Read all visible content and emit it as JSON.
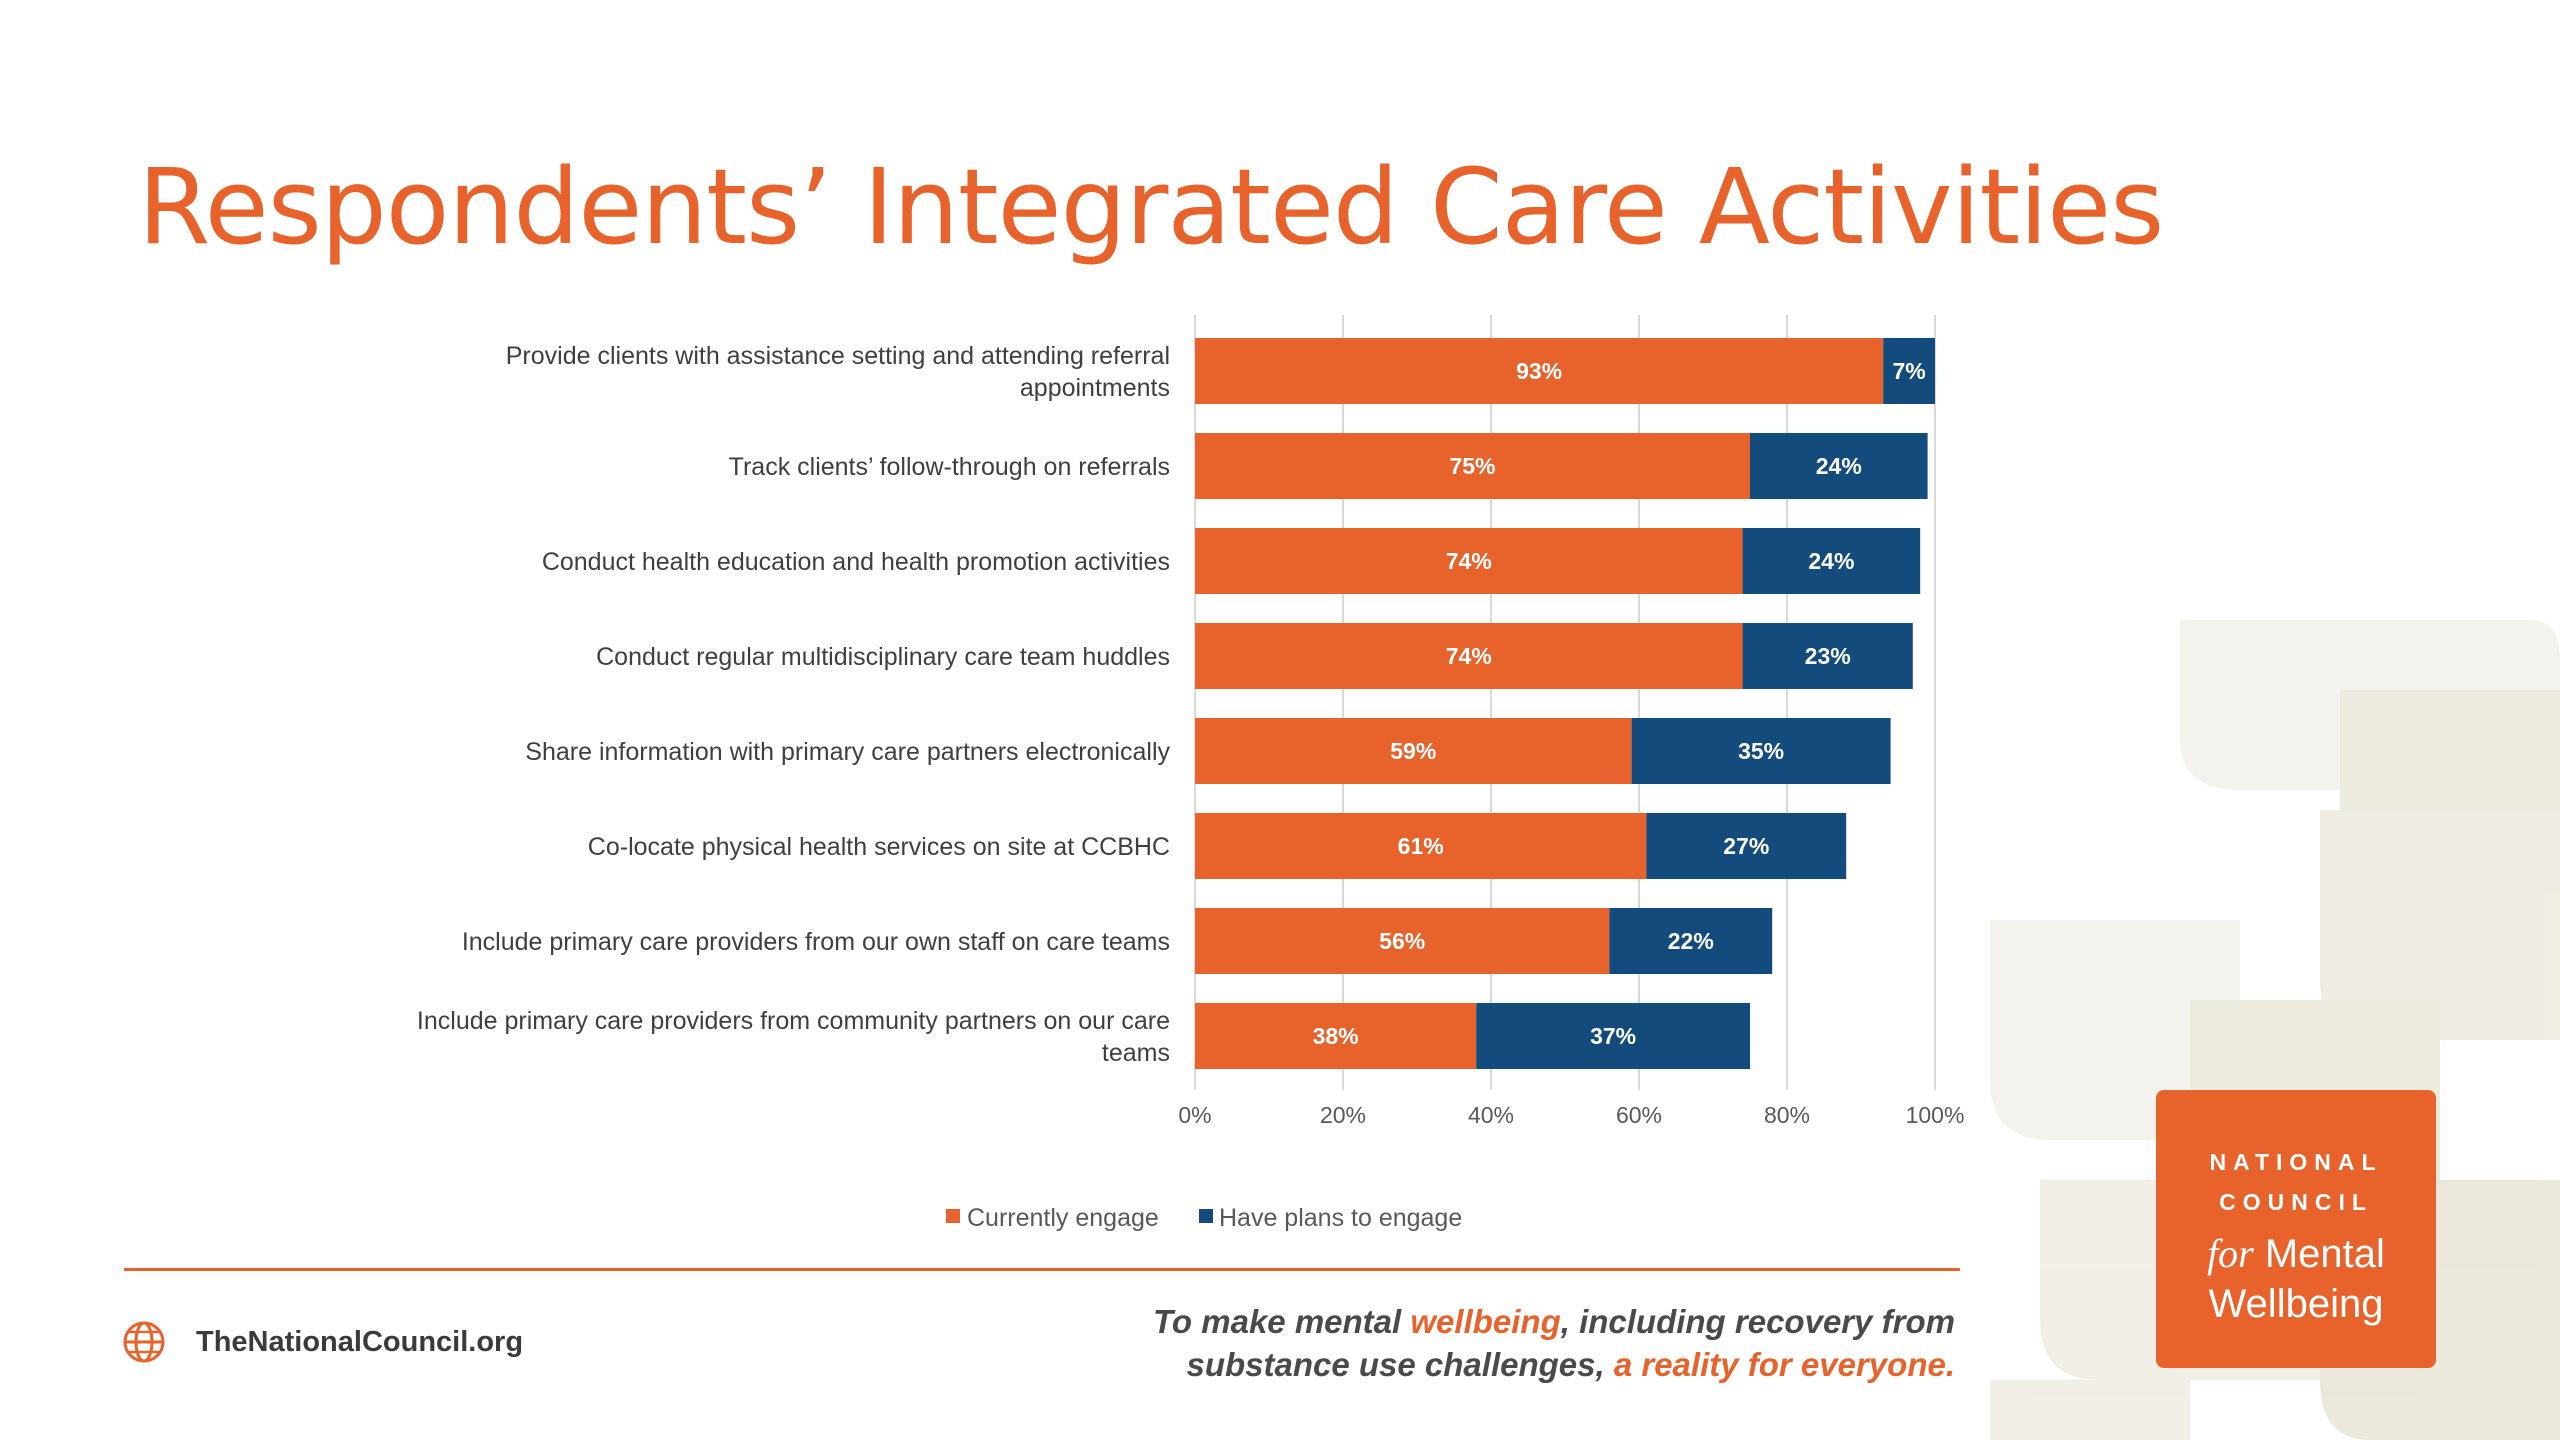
{
  "slide": {
    "title": "Respondents’ Integrated Care Activities"
  },
  "chart_data": {
    "type": "bar",
    "orientation": "horizontal",
    "stacked": true,
    "categories": [
      "Provide clients with assistance setting and attending referral appointments",
      "Track clients’ follow-through on referrals",
      "Conduct health education and health promotion activities",
      "Conduct regular multidisciplinary care team huddles",
      "Share information with primary care partners electronically",
      "Co-locate physical health services on site at CCBHC",
      "Include primary care providers from our own staff on care teams",
      "Include primary care providers from community partners on our care teams"
    ],
    "category_lines": [
      [
        "Provide clients with assistance setting and attending referral",
        "appointments"
      ],
      [
        "Track clients’ follow-through on referrals"
      ],
      [
        "Conduct health education and health promotion activities"
      ],
      [
        "Conduct regular multidisciplinary care team huddles"
      ],
      [
        "Share information with primary care partners electronically"
      ],
      [
        "Co-locate physical health services on site at CCBHC"
      ],
      [
        "Include primary care providers from our own staff on care teams"
      ],
      [
        "Include primary care providers from community partners on our care",
        "teams"
      ]
    ],
    "series": [
      {
        "name": "Currently engage",
        "color": "#e8622c",
        "values": [
          93,
          75,
          74,
          74,
          59,
          61,
          56,
          38
        ]
      },
      {
        "name": "Have plans to engage",
        "color": "#144b7d",
        "values": [
          7,
          24,
          24,
          23,
          35,
          27,
          22,
          37
        ]
      }
    ],
    "x_ticks": [
      "0%",
      "20%",
      "40%",
      "60%",
      "80%",
      "100%"
    ],
    "xlim": [
      0,
      100
    ],
    "gridlines": true,
    "legend_position": "bottom"
  },
  "footer": {
    "website": "TheNationalCouncil.org",
    "tagline_line1_pre": "To make mental ",
    "tagline_line1_highlight": "wellbeing",
    "tagline_line1_post": ", including recovery from",
    "tagline_line2_pre": "substance use challenges, ",
    "tagline_line2_highlight": "a reality for everyone."
  },
  "logo": {
    "line1": "NATIONAL",
    "line2": "COUNCIL",
    "line3_for": "for",
    "line3_rest": " Mental",
    "line4": "Wellbeing"
  },
  "icons": {
    "website": "globe-icon"
  },
  "colors": {
    "accent": "#e8622c",
    "navy": "#144b7d"
  }
}
